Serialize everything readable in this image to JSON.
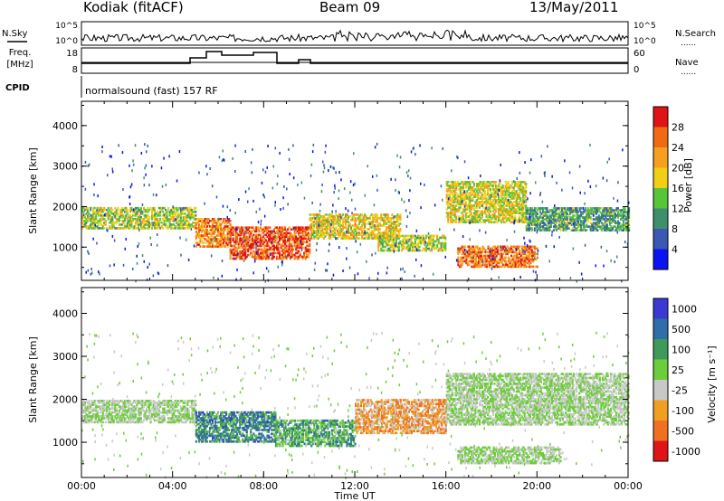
{
  "header": {
    "station": "Kodiak (fitACF)",
    "beam": "Beam 09",
    "date": "13/May/2011"
  },
  "side_labels": {
    "nsky": "N.Sky",
    "freq_line1": "Freq.",
    "freq_line2": "[MHz]",
    "cpid": "CPID",
    "nsearch": "N.Search",
    "nave": "Nave",
    "dots": "......"
  },
  "cpid_text": "normalsound (fast) 157 RF",
  "noise_axis": {
    "top": "10^5",
    "bottom": "10^0"
  },
  "freq_axis": {
    "ticks": [
      "18",
      "8"
    ]
  },
  "nave_axis": {
    "ticks": [
      "60",
      "0"
    ]
  },
  "x_axis": {
    "label": "Time UT",
    "ticks": [
      "00:00",
      "04:00",
      "08:00",
      "12:00",
      "16:00",
      "20:00",
      "00:00"
    ]
  },
  "chart_data": [
    {
      "type": "heatmap",
      "ylabel": "Slant Range [km]",
      "yticks": [
        "1000",
        "2000",
        "3000",
        "4000"
      ],
      "ylim": [
        180,
        4600
      ],
      "colorbar": {
        "label": "Power [dB]",
        "ticks": [
          "4",
          "8",
          "12",
          "16",
          "20",
          "24",
          "28"
        ],
        "colors": [
          "#0a14f0",
          "#3a58b4",
          "#3f8f6e",
          "#58c43a",
          "#f0cf14",
          "#f5a01e",
          "#f06a14",
          "#e01414"
        ]
      },
      "bands": [
        {
          "t0": 0.0,
          "t1": 5.0,
          "r0": 1450,
          "r1": 1950,
          "level": 0.5
        },
        {
          "t0": 5.0,
          "t1": 6.5,
          "r0": 1000,
          "r1": 1700,
          "level": 0.75
        },
        {
          "t0": 6.5,
          "t1": 10.0,
          "r0": 700,
          "r1": 1500,
          "level": 0.85
        },
        {
          "t0": 10.0,
          "t1": 14.0,
          "r0": 1200,
          "r1": 1800,
          "level": 0.6
        },
        {
          "t0": 13.0,
          "t1": 16.0,
          "r0": 900,
          "r1": 1300,
          "level": 0.5
        },
        {
          "t0": 16.0,
          "t1": 19.5,
          "r0": 1600,
          "r1": 2600,
          "level": 0.55
        },
        {
          "t0": 16.5,
          "t1": 20.0,
          "r0": 500,
          "r1": 1000,
          "level": 0.8
        },
        {
          "t0": 19.5,
          "t1": 24.0,
          "r0": 1400,
          "r1": 1950,
          "level": 0.35
        }
      ]
    },
    {
      "type": "heatmap",
      "ylabel": "Slant Range [km]",
      "yticks": [
        "1000",
        "2000",
        "3000",
        "4000"
      ],
      "ylim": [
        180,
        4600
      ],
      "colorbar": {
        "label": "Velocity [m s⁻¹]",
        "ticks": [
          "1000",
          "500",
          "100",
          "25",
          "-25",
          "-100",
          "-500",
          "-1000"
        ],
        "colors": [
          "#3a3ad2",
          "#2f6ea8",
          "#3f9a5a",
          "#6ccd3a",
          "#c8c8c8",
          "#f0a020",
          "#f07020",
          "#e01414"
        ]
      },
      "bands": [
        {
          "t0": 0.0,
          "t1": 5.0,
          "r0": 1450,
          "r1": 1950,
          "level": 0.5
        },
        {
          "t0": 5.0,
          "t1": 8.5,
          "r0": 1000,
          "r1": 1700,
          "level": 0.25
        },
        {
          "t0": 8.5,
          "t1": 12.0,
          "r0": 900,
          "r1": 1500,
          "level": 0.35
        },
        {
          "t0": 12.0,
          "t1": 16.0,
          "r0": 1200,
          "r1": 2000,
          "level": 0.7
        },
        {
          "t0": 16.0,
          "t1": 24.0,
          "r0": 1400,
          "r1": 2600,
          "level": 0.5
        },
        {
          "t0": 16.5,
          "t1": 21.0,
          "r0": 500,
          "r1": 900,
          "level": 0.5
        }
      ]
    }
  ]
}
